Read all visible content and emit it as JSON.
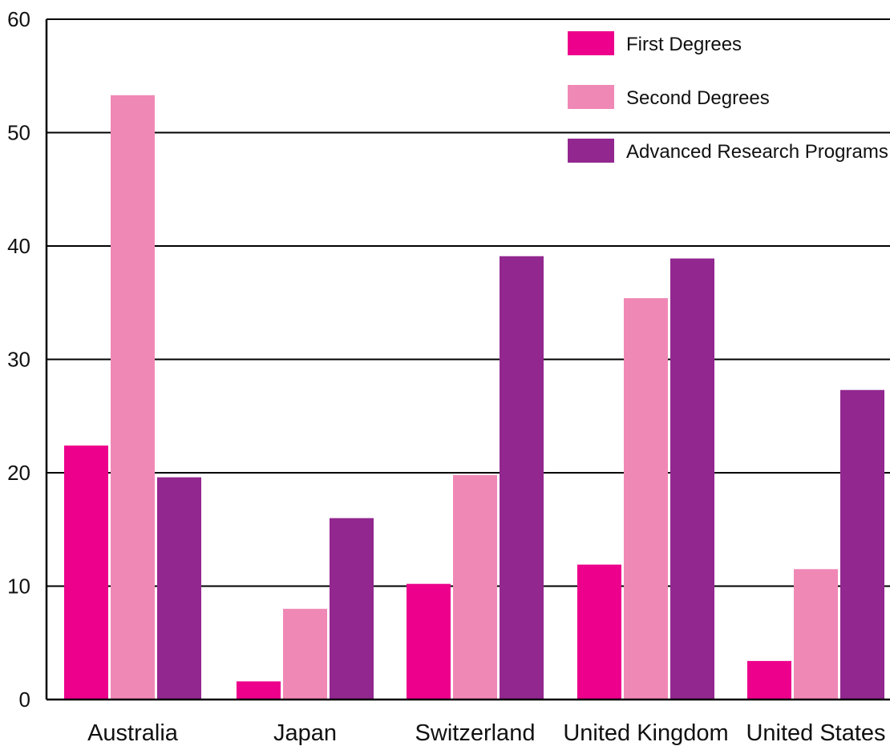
{
  "chart_data": {
    "type": "bar",
    "categories": [
      "Australia",
      "Japan",
      "Switzerland",
      "United Kingdom",
      "United States"
    ],
    "series": [
      {
        "name": "First Degrees",
        "color": "#ec008c",
        "values": [
          22.4,
          1.6,
          10.2,
          11.9,
          3.4
        ]
      },
      {
        "name": "Second Degrees",
        "color": "#f088b6",
        "values": [
          53.3,
          8.0,
          19.8,
          35.4,
          11.5
        ]
      },
      {
        "name": "Advanced Research Programs",
        "color": "#92278f",
        "values": [
          19.6,
          16.0,
          39.1,
          38.9,
          27.3
        ]
      }
    ],
    "ylim": [
      0,
      60
    ],
    "yticks": [
      "0",
      "10",
      "20",
      "30",
      "40",
      "50",
      "60"
    ],
    "grid": true,
    "legend": "top-right",
    "title": "",
    "xlabel": "",
    "ylabel": ""
  }
}
